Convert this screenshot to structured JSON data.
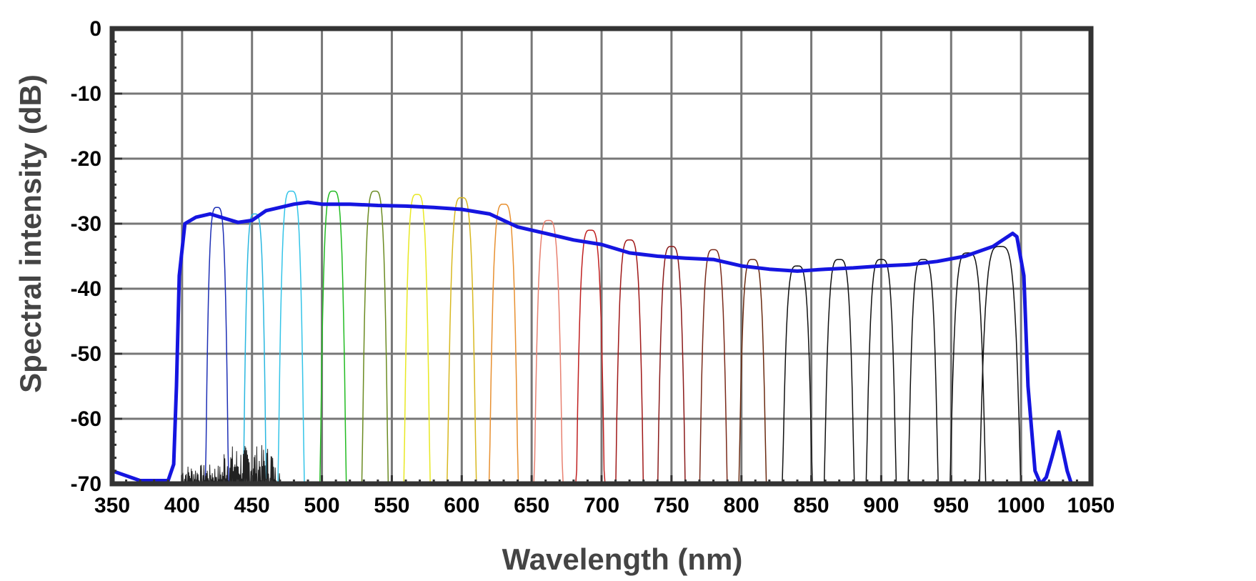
{
  "chart_data": {
    "type": "line",
    "title": "",
    "xlabel": "Wavelength (nm)",
    "ylabel": "Spectral intensity (dB)",
    "xlim": [
      350,
      1050
    ],
    "ylim": [
      -70,
      0
    ],
    "x_ticks": [
      350,
      400,
      450,
      500,
      550,
      600,
      650,
      700,
      750,
      800,
      850,
      900,
      950,
      1000,
      1050
    ],
    "y_ticks": [
      0,
      -10,
      -20,
      -30,
      -40,
      -50,
      -60,
      -70
    ],
    "grid": true,
    "legend": "none",
    "colors": {
      "supercontinuum": "#1515e0",
      "grid": "#777777",
      "frame": "#333333"
    },
    "series": [
      {
        "role": "supercontinuum",
        "color": "#1515e0",
        "x": [
          350,
          370,
          390,
          394,
          396,
          398,
          402,
          410,
          420,
          440,
          450,
          460,
          480,
          490,
          500,
          520,
          540,
          560,
          580,
          600,
          620,
          640,
          660,
          680,
          700,
          720,
          740,
          760,
          780,
          800,
          820,
          840,
          860,
          880,
          900,
          920,
          940,
          960,
          980,
          994,
          997,
          1002,
          1005,
          1010,
          1014,
          1018,
          1022,
          1027,
          1030,
          1033,
          1036
        ],
        "y": [
          -68,
          -69.5,
          -69.5,
          -67,
          -55,
          -38,
          -30,
          -29,
          -28.5,
          -29.8,
          -29.5,
          -28,
          -27,
          -26.7,
          -27,
          -27,
          -27.2,
          -27.3,
          -27.5,
          -27.8,
          -28.5,
          -30.5,
          -31.5,
          -32.5,
          -33.2,
          -34.5,
          -35,
          -35.3,
          -35.5,
          -36.5,
          -37,
          -37.3,
          -37,
          -36.8,
          -36.5,
          -36.3,
          -35.8,
          -35,
          -33.5,
          -31.5,
          -32,
          -38,
          -55,
          -68,
          -70,
          -69,
          -66,
          -62,
          -65,
          -68,
          -70
        ]
      }
    ],
    "filters": [
      {
        "center": 425,
        "peak": -27.5,
        "width": 16,
        "color": "#1d2fb5"
      },
      {
        "center": 452,
        "peak": -28.5,
        "width": 16,
        "color": "#29b7e0"
      },
      {
        "center": 478,
        "peak": -25,
        "width": 18,
        "color": "#33c4e8"
      },
      {
        "center": 508,
        "peak": -25,
        "width": 18,
        "color": "#22bb22"
      },
      {
        "center": 538,
        "peak": -25,
        "width": 18,
        "color": "#6b8b22"
      },
      {
        "center": 568,
        "peak": -25.5,
        "width": 18,
        "color": "#e8e822"
      },
      {
        "center": 600,
        "peak": -26,
        "width": 20,
        "color": "#d8b820"
      },
      {
        "center": 630,
        "peak": -27,
        "width": 20,
        "color": "#e89030"
      },
      {
        "center": 662,
        "peak": -29.5,
        "width": 20,
        "color": "#e88070"
      },
      {
        "center": 692,
        "peak": -31,
        "width": 20,
        "color": "#c02020"
      },
      {
        "center": 720,
        "peak": -32.5,
        "width": 20,
        "color": "#a01818"
      },
      {
        "center": 750,
        "peak": -33.5,
        "width": 20,
        "color": "#8a1a1a"
      },
      {
        "center": 780,
        "peak": -34,
        "width": 20,
        "color": "#7a2a1a"
      },
      {
        "center": 808,
        "peak": -35.5,
        "width": 20,
        "color": "#6a2a10"
      },
      {
        "center": 840,
        "peak": -36.5,
        "width": 22,
        "color": "#111111"
      },
      {
        "center": 870,
        "peak": -35.5,
        "width": 22,
        "color": "#111111"
      },
      {
        "center": 900,
        "peak": -35.5,
        "width": 22,
        "color": "#111111"
      },
      {
        "center": 930,
        "peak": -35.5,
        "width": 22,
        "color": "#111111"
      },
      {
        "center": 962,
        "peak": -34.5,
        "width": 26,
        "color": "#111111"
      },
      {
        "center": 985,
        "peak": -33.5,
        "width": 30,
        "color": "#111111"
      }
    ]
  }
}
